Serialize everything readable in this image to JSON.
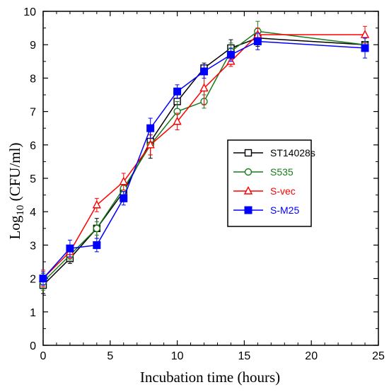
{
  "chart_data": {
    "type": "line",
    "xlabel": "Incubation time (hours)",
    "ylabel_main": "Log",
    "ylabel_sub": "10",
    "ylabel_rest": " (CFU/ml)",
    "xlim": [
      0,
      25
    ],
    "ylim": [
      0,
      10
    ],
    "xticks": [
      "0",
      "5",
      "10",
      "15",
      "20",
      "25"
    ],
    "yticks": [
      "0",
      "1",
      "2",
      "3",
      "4",
      "5",
      "6",
      "7",
      "8",
      "9",
      "10"
    ],
    "grid": false,
    "legend_position": "right-middle",
    "x": [
      0,
      2,
      4,
      6,
      8,
      10,
      12,
      14,
      16,
      24
    ],
    "series": [
      {
        "name": "ST14028s",
        "color": "#000000",
        "marker": "open-square",
        "values": [
          1.8,
          2.6,
          3.5,
          4.6,
          6.1,
          7.3,
          8.3,
          8.9,
          9.2,
          9.0
        ],
        "errors": [
          0.25,
          0.15,
          0.3,
          0.2,
          0.5,
          0.3,
          0.15,
          0.25,
          0.25,
          0.2
        ]
      },
      {
        "name": "S535",
        "color": "#1a7a1a",
        "marker": "open-circle",
        "values": [
          1.9,
          2.7,
          3.5,
          4.7,
          6.0,
          7.0,
          7.3,
          8.8,
          9.4,
          9.0
        ],
        "errors": [
          0.25,
          0.15,
          0.2,
          0.2,
          0.3,
          0.3,
          0.2,
          0.25,
          0.3,
          0.2
        ]
      },
      {
        "name": "S-vec",
        "color": "#ff0000",
        "marker": "open-triangle",
        "values": [
          2.0,
          2.8,
          4.2,
          4.9,
          6.0,
          6.7,
          7.7,
          8.5,
          9.3,
          9.3
        ],
        "errors": [
          0.25,
          0.2,
          0.2,
          0.25,
          0.3,
          0.25,
          0.5,
          0.15,
          0.2,
          0.25
        ]
      },
      {
        "name": "S-M25",
        "color": "#0000ff",
        "marker": "filled-square",
        "values": [
          2.0,
          2.9,
          3.0,
          4.4,
          6.5,
          7.6,
          8.2,
          8.7,
          9.1,
          8.9
        ],
        "errors": [
          0.2,
          0.25,
          0.2,
          0.2,
          0.3,
          0.2,
          0.2,
          0.2,
          0.25,
          0.3
        ]
      }
    ]
  }
}
